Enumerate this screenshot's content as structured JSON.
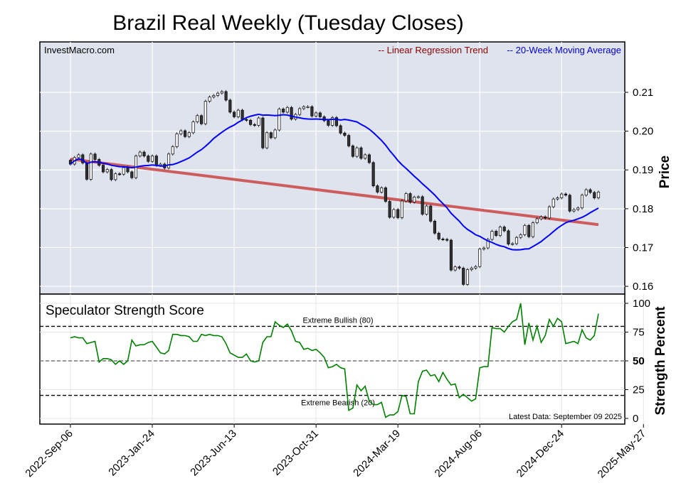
{
  "chart_data": [
    {
      "type": "candlestick",
      "title": "Brazil Real Weekly (Tuesday Closes)",
      "watermark": "InvestMacro.com",
      "ylabel": "Price",
      "ylim": [
        0.158,
        0.223
      ],
      "yticks": [
        "0.16",
        "0.17",
        "0.18",
        "0.19",
        "0.20",
        "0.21"
      ],
      "legend": [
        {
          "label": "-- Linear Regression Trend",
          "color": "#8b0000"
        },
        {
          "label": "-- 20-Week Moving Average",
          "color": "#0000cc"
        }
      ],
      "trend_line": {
        "start": [
          "2022-Sep-06",
          0.1928
        ],
        "end": [
          "2025-Sep-09",
          0.1759
        ],
        "color": "#cd5c5c"
      },
      "ma_color": "#0000ff",
      "up_color": "#ffffff",
      "down_color": "#333333",
      "closes": [
        0.1915,
        0.1932,
        0.1939,
        0.1918,
        0.1876,
        0.1941,
        0.1927,
        0.1912,
        0.1895,
        0.1901,
        0.1875,
        0.189,
        0.1889,
        0.1906,
        0.1895,
        0.188,
        0.1936,
        0.1946,
        0.1936,
        0.1922,
        0.1936,
        0.1912,
        0.1915,
        0.1905,
        0.1941,
        0.196,
        0.1993,
        0.2001,
        0.1986,
        0.1996,
        0.2024,
        0.204,
        0.2019,
        0.2077,
        0.2088,
        0.2092,
        0.2098,
        0.2102,
        0.208,
        0.2049,
        0.2037,
        0.2054,
        0.203,
        0.2028,
        0.2017,
        0.2015,
        0.2034,
        0.1957,
        0.1996,
        0.1983,
        0.2003,
        0.2057,
        0.2049,
        0.2061,
        0.2031,
        0.2043,
        0.2058,
        0.2063,
        0.2063,
        0.2039,
        0.2047,
        0.2037,
        0.2027,
        0.2015,
        0.2035,
        0.2014,
        0.1995,
        0.1989,
        0.1962,
        0.1935,
        0.1957,
        0.193,
        0.1939,
        0.1919,
        0.1859,
        0.1843,
        0.1854,
        0.1819,
        0.1778,
        0.1798,
        0.1777,
        0.182,
        0.1839,
        0.1817,
        0.183,
        0.1831,
        0.1786,
        0.1807,
        0.1768,
        0.1737,
        0.1722,
        0.1721,
        0.1719,
        0.1642,
        0.165,
        0.1647,
        0.1605,
        0.1643,
        0.1647,
        0.1651,
        0.1696,
        0.1699,
        0.1721,
        0.1742,
        0.1731,
        0.1753,
        0.1743,
        0.1709,
        0.171,
        0.1726,
        0.1733,
        0.1757,
        0.1728,
        0.1764,
        0.1774,
        0.1779,
        0.1776,
        0.1805,
        0.1825,
        0.1828,
        0.1838,
        0.1835,
        0.1794,
        0.1798,
        0.1802,
        0.1835,
        0.1849,
        0.1842,
        0.1828,
        0.1843
      ]
    },
    {
      "type": "line",
      "title": "Speculator Strength Score",
      "ylabel": "Strength Percent",
      "ylim": [
        0,
        100
      ],
      "yticks": [
        "0",
        "25",
        "50",
        "75",
        "100"
      ],
      "footnote": "Latest Data: September 09 2025",
      "reference_lines": [
        {
          "value": 80,
          "label": "Extreme Bullish (80)"
        },
        {
          "value": 50,
          "label": "50"
        },
        {
          "value": 20,
          "label": "Extreme Bearish (20)"
        }
      ],
      "color": "#008000",
      "values": [
        70,
        71,
        70,
        70,
        65,
        66,
        67,
        49,
        52,
        52,
        51,
        47,
        50,
        47,
        50,
        68,
        63,
        64,
        64,
        66,
        67,
        62,
        57,
        56,
        59,
        73,
        73,
        72,
        72,
        71,
        67,
        67,
        73,
        72,
        73,
        72,
        72,
        71,
        65,
        57,
        55,
        53,
        53,
        56,
        50,
        49,
        50,
        66,
        71,
        71,
        84,
        81,
        79,
        82,
        76,
        67,
        66,
        60,
        61,
        59,
        60,
        57,
        53,
        44,
        45,
        47,
        44,
        43,
        7,
        9,
        29,
        24,
        28,
        15,
        12,
        12,
        14,
        1,
        3,
        3,
        6,
        20,
        19,
        4,
        4,
        32,
        41,
        42,
        37,
        38,
        32,
        40,
        34,
        29,
        30,
        18,
        21,
        18,
        15,
        17,
        44,
        45,
        45,
        79,
        78,
        78,
        75,
        80,
        84,
        86,
        100,
        64,
        83,
        68,
        80,
        66,
        72,
        86,
        80,
        87,
        84,
        65,
        66,
        67,
        65,
        77,
        70,
        68,
        72,
        91
      ]
    }
  ],
  "x_axis": {
    "labels": [
      "2022-Sep-06",
      "2023-Jan-24",
      "2023-Jun-13",
      "2023-Oct-31",
      "2024-Mar-19",
      "2024-Aug-06",
      "2024-Dec-24",
      "2025-May-27"
    ]
  }
}
